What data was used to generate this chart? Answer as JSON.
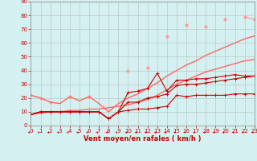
{
  "x": [
    0,
    1,
    2,
    3,
    4,
    5,
    6,
    7,
    8,
    9,
    10,
    11,
    12,
    13,
    14,
    15,
    16,
    17,
    18,
    19,
    20,
    21,
    22,
    23
  ],
  "series": [
    {
      "color": "#ff9999",
      "linewidth": 0.8,
      "marker": "D",
      "markersize": 2.0,
      "y": [
        22,
        20,
        17,
        null,
        21,
        null,
        21,
        null,
        null,
        null,
        40,
        null,
        42,
        null,
        65,
        null,
        73,
        null,
        72,
        null,
        77,
        null,
        79,
        77
      ]
    },
    {
      "color": "#ff6666",
      "linewidth": 1.0,
      "marker": null,
      "markersize": 0,
      "y": [
        8,
        9,
        10,
        10,
        11,
        11,
        12,
        12,
        13,
        14,
        15,
        17,
        19,
        22,
        26,
        30,
        33,
        36,
        39,
        41,
        43,
        45,
        47,
        48
      ]
    },
    {
      "color": "#ff6666",
      "linewidth": 1.0,
      "marker": null,
      "markersize": 0,
      "y": [
        22,
        20,
        17,
        16,
        21,
        18,
        21,
        16,
        10,
        16,
        20,
        23,
        27,
        31,
        36,
        40,
        44,
        47,
        51,
        54,
        57,
        60,
        63,
        65
      ]
    },
    {
      "color": "#cc0000",
      "linewidth": 0.8,
      "marker": "+",
      "markersize": 3,
      "y": [
        8,
        10,
        10,
        10,
        10,
        10,
        10,
        10,
        5,
        10,
        11,
        12,
        12,
        13,
        14,
        22,
        21,
        22,
        22,
        22,
        22,
        23,
        23,
        23
      ]
    },
    {
      "color": "#cc0000",
      "linewidth": 0.8,
      "marker": "+",
      "markersize": 3,
      "y": [
        8,
        10,
        10,
        10,
        10,
        10,
        10,
        10,
        5,
        10,
        17,
        17,
        20,
        21,
        23,
        29,
        30,
        30,
        31,
        32,
        33,
        34,
        35,
        36
      ]
    },
    {
      "color": "#cc0000",
      "linewidth": 0.8,
      "marker": "+",
      "markersize": 3,
      "y": [
        8,
        10,
        10,
        10,
        10,
        10,
        10,
        10,
        5,
        10,
        24,
        25,
        27,
        38,
        25,
        33,
        33,
        34,
        34,
        35,
        36,
        37,
        36,
        36
      ]
    }
  ],
  "xlim": [
    0,
    23
  ],
  "ylim": [
    0,
    90
  ],
  "yticks": [
    0,
    10,
    20,
    30,
    40,
    50,
    60,
    70,
    80,
    90
  ],
  "xticks": [
    0,
    1,
    2,
    3,
    4,
    5,
    6,
    7,
    8,
    9,
    10,
    11,
    12,
    13,
    14,
    15,
    16,
    17,
    18,
    19,
    20,
    21,
    22,
    23
  ],
  "xlabel": "Vent moyen/en rafales ( km/h )",
  "background_color": "#d4f0f0",
  "grid_color": "#aaaaaa",
  "tick_color": "#cc0000",
  "label_color": "#cc0000"
}
